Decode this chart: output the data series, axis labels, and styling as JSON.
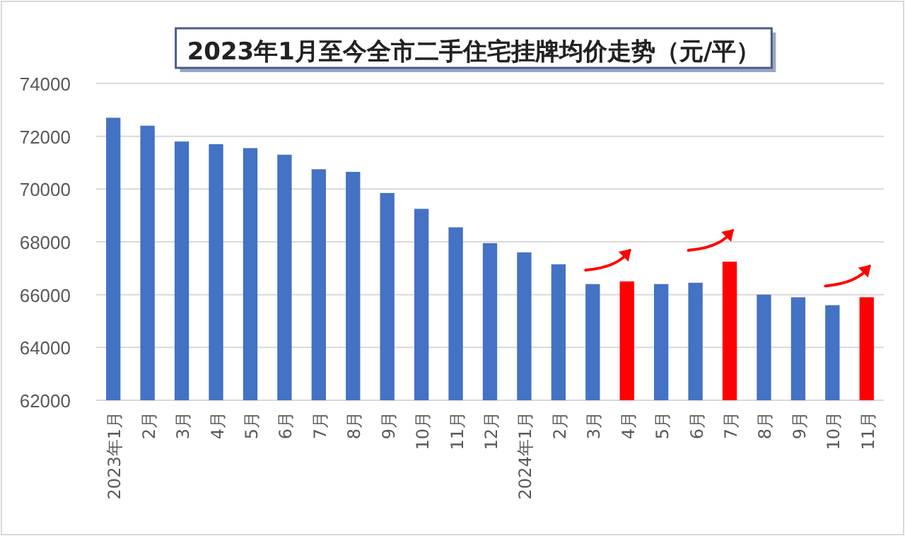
{
  "chart_data": {
    "type": "bar",
    "title": "2023年1月至今全市二手住宅挂牌均价走势（元/平）",
    "categories": [
      "2023年1月",
      "2月",
      "3月",
      "4月",
      "5月",
      "6月",
      "7月",
      "8月",
      "9月",
      "10月",
      "11月",
      "12月",
      "2024年1月",
      "2月",
      "3月",
      "4月",
      "5月",
      "6月",
      "7月",
      "8月",
      "9月",
      "10月",
      "11月"
    ],
    "values": [
      72700,
      72400,
      71800,
      71700,
      71550,
      71300,
      70750,
      70650,
      69850,
      69250,
      68550,
      67950,
      67600,
      67150,
      66400,
      66500,
      66400,
      66450,
      67250,
      66000,
      65900,
      65600,
      65900
    ],
    "colors": [
      "#4472c4",
      "#4472c4",
      "#4472c4",
      "#4472c4",
      "#4472c4",
      "#4472c4",
      "#4472c4",
      "#4472c4",
      "#4472c4",
      "#4472c4",
      "#4472c4",
      "#4472c4",
      "#4472c4",
      "#4472c4",
      "#4472c4",
      "#ff0000",
      "#4472c4",
      "#4472c4",
      "#ff0000",
      "#4472c4",
      "#4472c4",
      "#4472c4",
      "#ff0000"
    ],
    "ylim": [
      62000,
      74000
    ],
    "yticks": [
      62000,
      64000,
      66000,
      68000,
      70000,
      72000,
      74000
    ],
    "grid": "y"
  }
}
